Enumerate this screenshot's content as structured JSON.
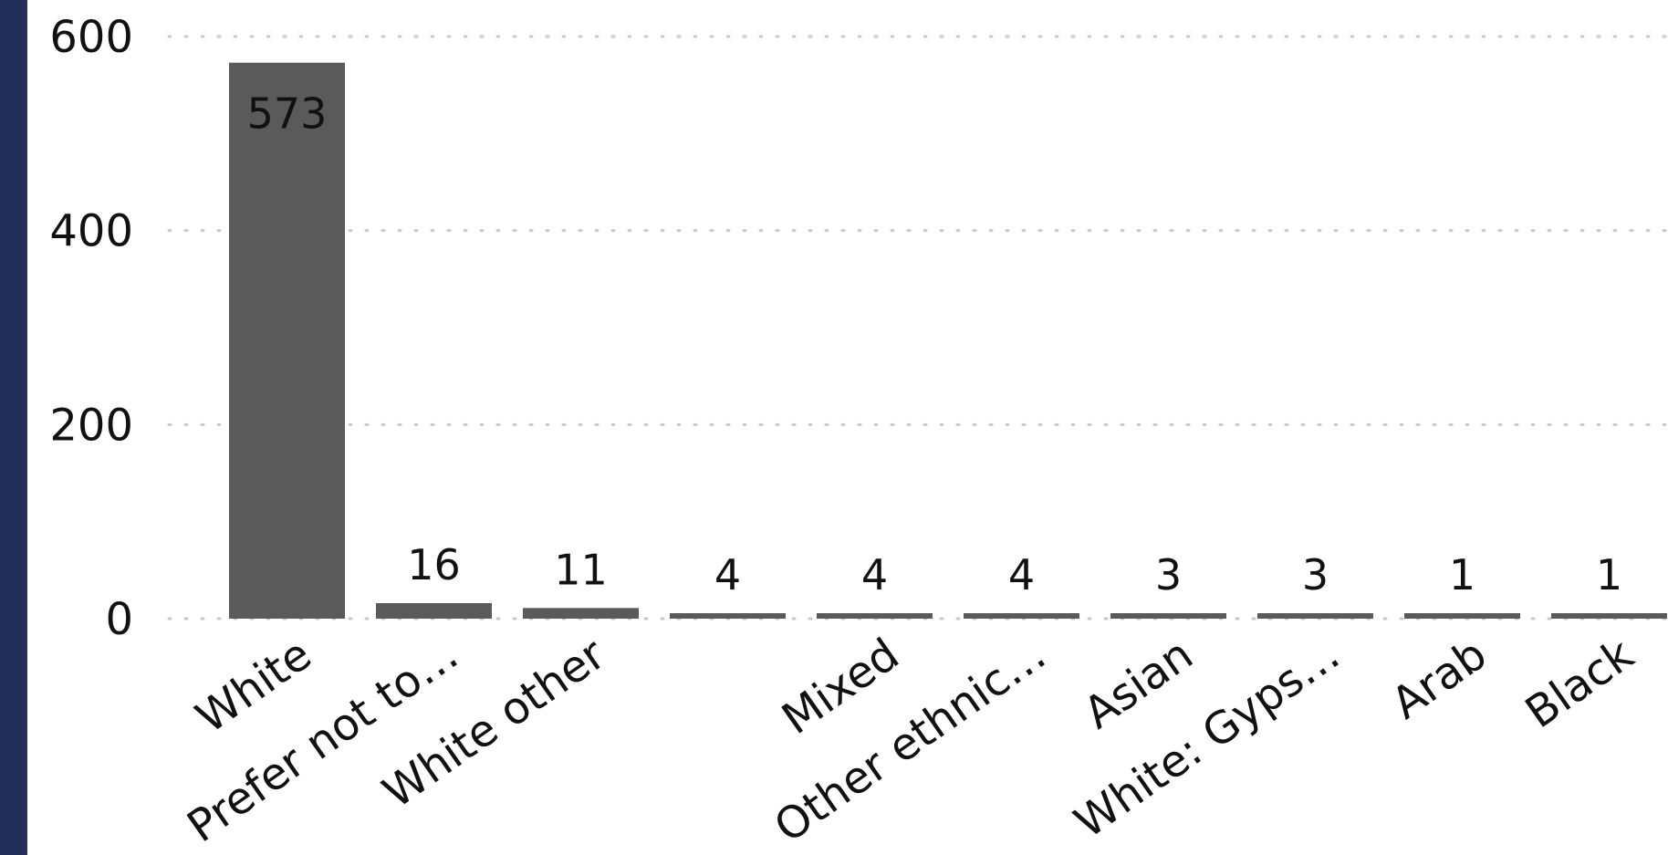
{
  "colors": {
    "bar": "#5a5a5a",
    "grid": "#c8c8c8",
    "left_bar": "#232f5a",
    "text": "#111111"
  },
  "chart_data": {
    "type": "bar",
    "categories": [
      "White",
      "Prefer not to…",
      "White other",
      "",
      "Mixed",
      "Other ethnic…",
      "Asian",
      "White: Gyps…",
      "Arab",
      "Black"
    ],
    "values": [
      573,
      16,
      11,
      4,
      4,
      4,
      3,
      3,
      1,
      1
    ],
    "ylim": [
      0,
      600
    ],
    "yticks": [
      0,
      200,
      400,
      600
    ],
    "grid": true,
    "legend": "none",
    "title": "",
    "xlabel": "",
    "ylabel": ""
  }
}
